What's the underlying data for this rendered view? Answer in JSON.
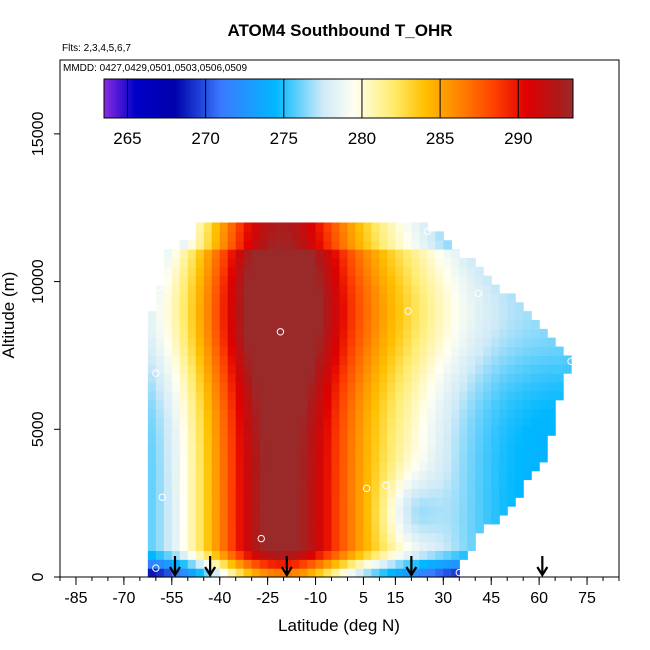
{
  "chart_data": {
    "type": "heatmap",
    "title": "ATOM4 Southbound T_OHR",
    "notes": {
      "flights": "Flts: 2,3,4,5,6,7",
      "dates": "MMDD: 0427,0429,0501,0503,0506,0509"
    },
    "xlabel": "Latitude (deg N)",
    "ylabel": "Altitude (m)",
    "xlim": [
      -90,
      85
    ],
    "ylim": [
      0,
      17500
    ],
    "x_ticks": [
      -85,
      -70,
      -55,
      -40,
      -25,
      -10,
      5,
      15,
      30,
      45,
      60,
      75
    ],
    "x_minor_step": 5,
    "y_ticks": [
      0,
      5000,
      10000,
      15000
    ],
    "colorbar": {
      "vmin": 263.5,
      "vmax": 293.5,
      "ticks": [
        265,
        270,
        275,
        280,
        285,
        290
      ],
      "colors": [
        {
          "v": 263.5,
          "c": "#8a2be2"
        },
        {
          "v": 265.5,
          "c": "#0000c8"
        },
        {
          "v": 268.0,
          "c": "#0000aa"
        },
        {
          "v": 271.0,
          "c": "#3a7aff"
        },
        {
          "v": 274.5,
          "c": "#00b8ff"
        },
        {
          "v": 277.5,
          "c": "#cfeaf8"
        },
        {
          "v": 279.5,
          "c": "#fffff2"
        },
        {
          "v": 282.0,
          "c": "#ffec6e"
        },
        {
          "v": 284.0,
          "c": "#ffc000"
        },
        {
          "v": 286.0,
          "c": "#ff8a00"
        },
        {
          "v": 288.5,
          "c": "#ff4000"
        },
        {
          "v": 290.5,
          "c": "#e00000"
        },
        {
          "v": 292.5,
          "c": "#b01818"
        },
        {
          "v": 293.5,
          "c": "#9a2a2a"
        }
      ]
    },
    "profile_latitudes": [
      -54,
      -43,
      -19,
      20,
      61
    ],
    "observation_points": [
      {
        "lat": -60,
        "alt": 300
      },
      {
        "lat": 35,
        "alt": 150
      },
      {
        "lat": -27,
        "alt": 1300
      },
      {
        "lat": -58,
        "alt": 2700
      },
      {
        "lat": 6,
        "alt": 3000
      },
      {
        "lat": 12,
        "alt": 3100
      },
      {
        "lat": -60,
        "alt": 6900
      },
      {
        "lat": -21,
        "alt": 8300
      },
      {
        "lat": 19,
        "alt": 9000
      },
      {
        "lat": 41,
        "alt": 9600
      },
      {
        "lat": -59,
        "alt": 9800
      },
      {
        "lat": -50,
        "alt": 11700
      },
      {
        "lat": 25,
        "alt": 11700
      },
      {
        "lat": 70,
        "alt": 7300
      }
    ]
  }
}
